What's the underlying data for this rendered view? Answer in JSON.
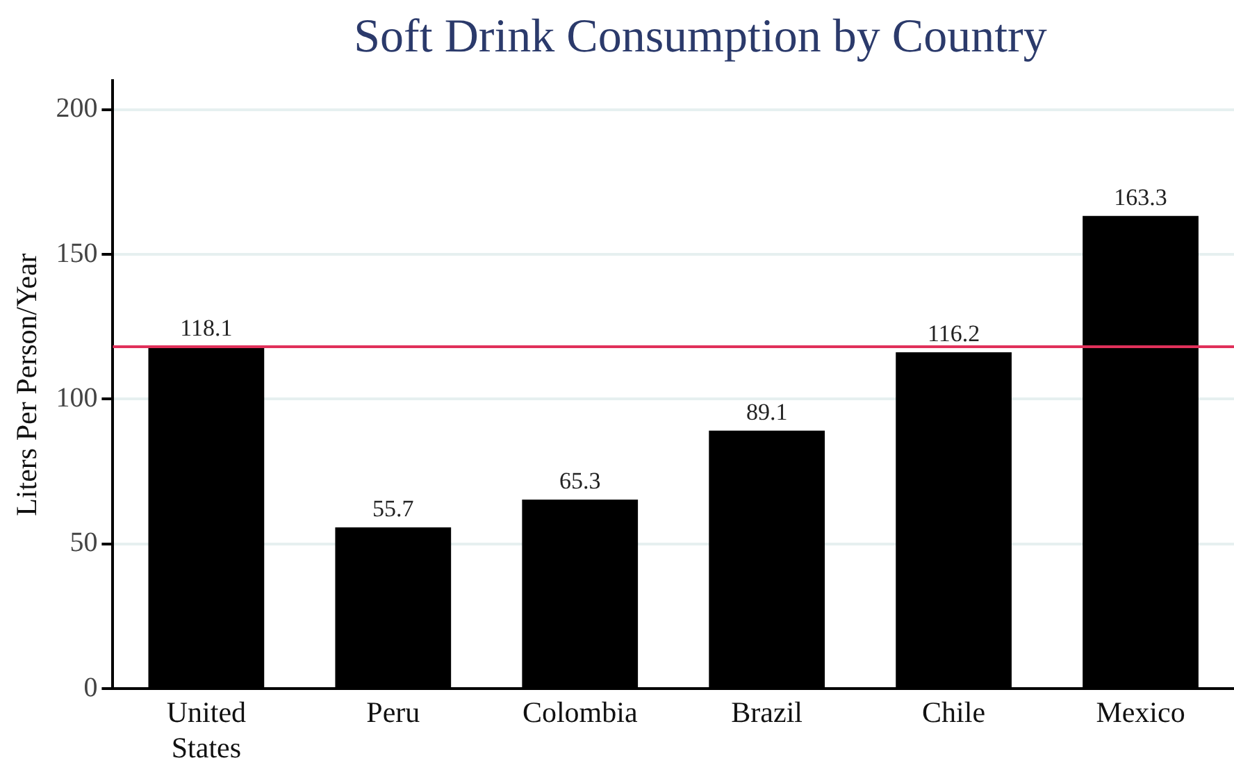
{
  "chart_data": {
    "type": "bar",
    "title": "Soft Drink Consumption by Country",
    "ylabel": "Liters Per Person/Year",
    "categories": [
      "United States",
      "Peru",
      "Colombia",
      "Brazil",
      "Chile",
      "Mexico"
    ],
    "values": [
      118.1,
      55.7,
      65.3,
      89.1,
      116.2,
      163.3
    ],
    "color": "#000000",
    "ylim": [
      0,
      210
    ],
    "yticks": [
      0,
      50,
      100,
      150,
      200
    ],
    "grid": "y",
    "data_labels": true,
    "ref_lines": [
      {
        "axis": "y",
        "value": 118.1,
        "color": "#e0305a"
      }
    ]
  }
}
